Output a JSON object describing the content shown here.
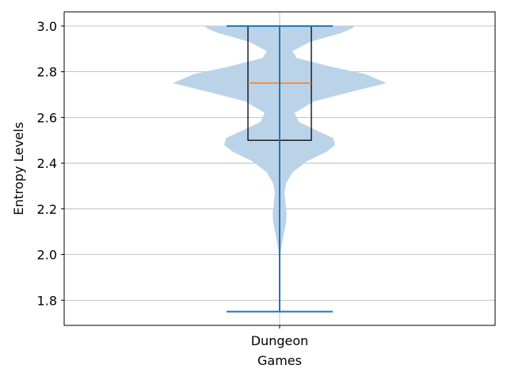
{
  "chart_data": {
    "type": "violin",
    "xlabel": "Games",
    "ylabel": "Entropy Levels",
    "categories": [
      "Dungeon"
    ],
    "ylim": [
      1.69,
      3.062
    ],
    "y_ticks": [
      1.8,
      2.0,
      2.2,
      2.4,
      2.6,
      2.8,
      3.0
    ],
    "y_tick_labels": [
      "1.8",
      "2.0",
      "2.2",
      "2.4",
      "2.6",
      "2.8",
      "3.0"
    ],
    "grid": true,
    "box": {
      "min": 1.75,
      "q1": 2.5,
      "median": 2.75,
      "q3": 3.0,
      "max": 3.0
    },
    "violin_extent": {
      "min": 1.75,
      "max": 3.0
    },
    "violin_density": [
      [
        1.75,
        0.002
      ],
      [
        1.85,
        0.002
      ],
      [
        1.95,
        0.004
      ],
      [
        2.02,
        0.012
      ],
      [
        2.08,
        0.035
      ],
      [
        2.14,
        0.06
      ],
      [
        2.18,
        0.065
      ],
      [
        2.22,
        0.055
      ],
      [
        2.27,
        0.045
      ],
      [
        2.31,
        0.06
      ],
      [
        2.36,
        0.12
      ],
      [
        2.41,
        0.26
      ],
      [
        2.45,
        0.44
      ],
      [
        2.48,
        0.52
      ],
      [
        2.51,
        0.5
      ],
      [
        2.54,
        0.36
      ],
      [
        2.58,
        0.18
      ],
      [
        2.62,
        0.14
      ],
      [
        2.67,
        0.32
      ],
      [
        2.71,
        0.65
      ],
      [
        2.75,
        1.0
      ],
      [
        2.79,
        0.8
      ],
      [
        2.82,
        0.5
      ],
      [
        2.86,
        0.16
      ],
      [
        2.89,
        0.12
      ],
      [
        2.93,
        0.28
      ],
      [
        2.97,
        0.58
      ],
      [
        2.99,
        0.68
      ],
      [
        3.0,
        0.7
      ]
    ],
    "colors": {
      "violin_fill": "#bad3e8",
      "whisker": "#1f77b4",
      "median": "#ff7f0e",
      "box_edge": "#000000",
      "grid": "#b0b0b0"
    }
  }
}
